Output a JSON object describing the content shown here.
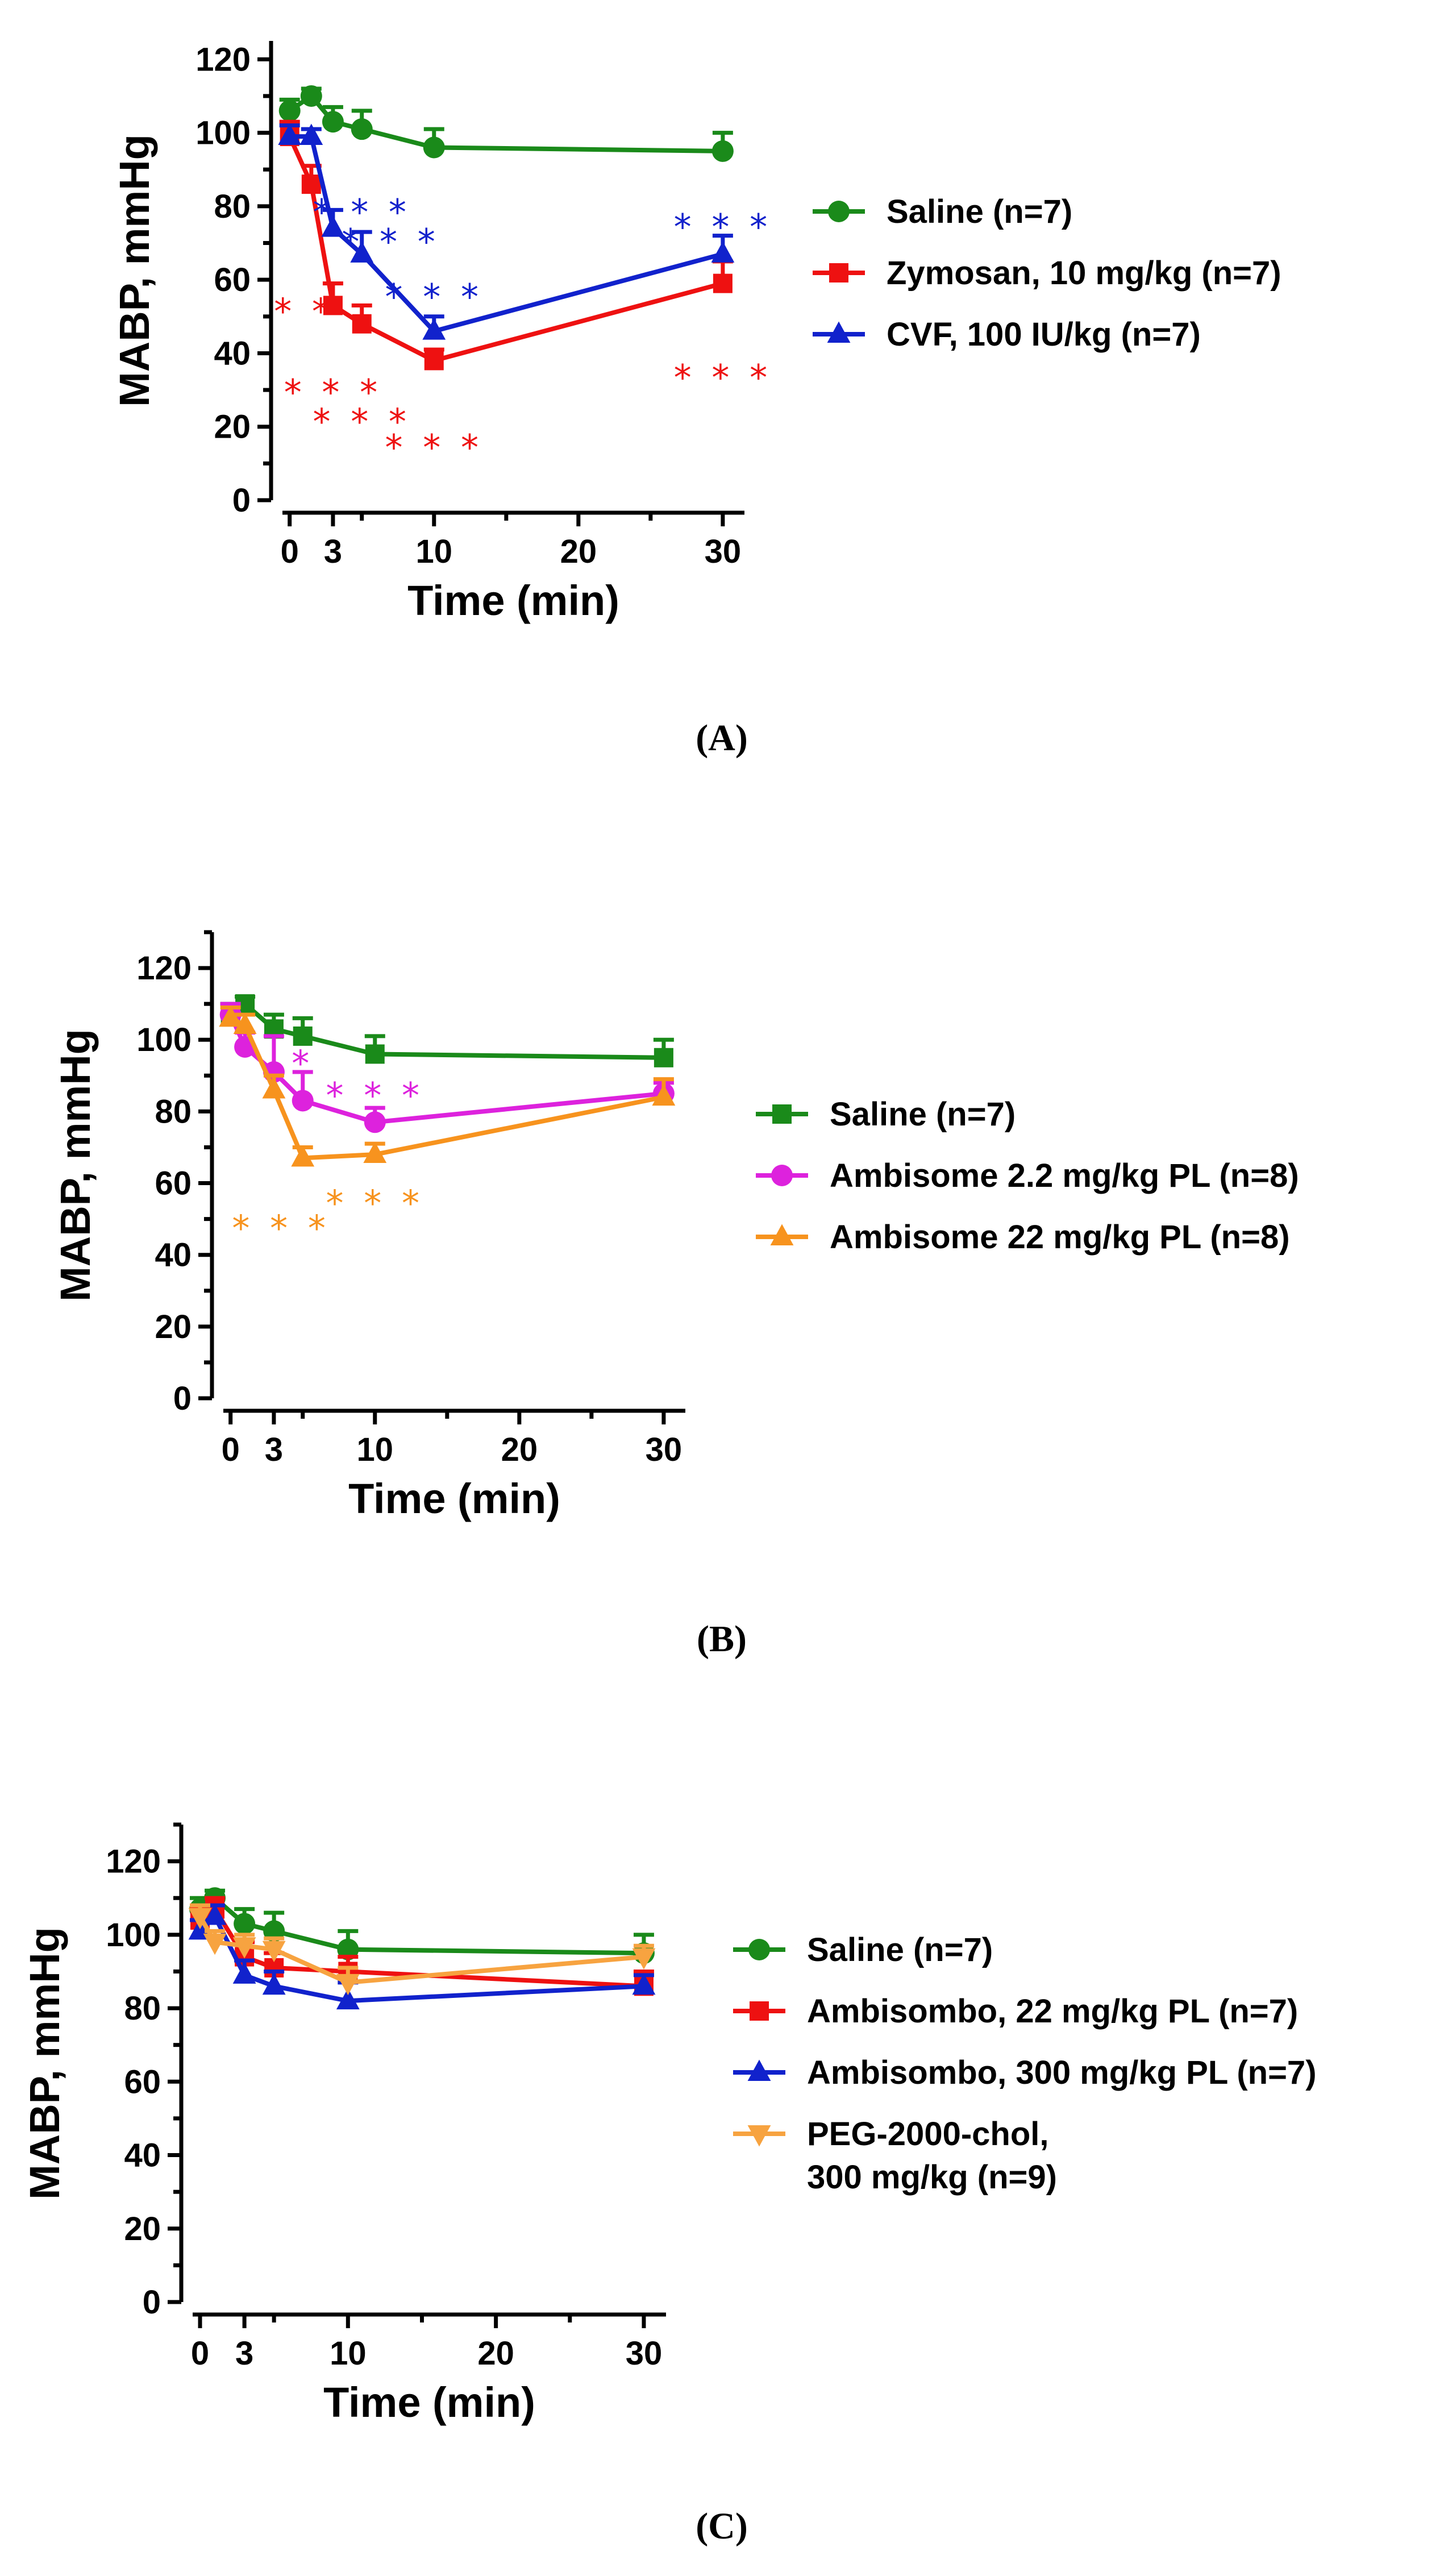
{
  "chart_data": [
    {
      "type": "line",
      "panel": "(A)",
      "xlabel": "Time (min)",
      "ylabel": "MABP, mmHg",
      "xticks": [
        0,
        3,
        10,
        20,
        30
      ],
      "yticks": [
        0,
        20,
        40,
        60,
        80,
        100,
        120
      ],
      "xlim": [
        -0.5,
        31.5
      ],
      "ylim": [
        0,
        125
      ],
      "legend_position": "right",
      "grid": false,
      "series": [
        {
          "name": "Saline (n=7)",
          "color": "#1a8a1a",
          "marker": "circle",
          "x": [
            0,
            1.5,
            3,
            5,
            10,
            30
          ],
          "y": [
            106,
            110,
            103,
            101,
            96,
            95
          ],
          "err": [
            3,
            2,
            4,
            5,
            5,
            5
          ]
        },
        {
          "name": "Zymosan, 10 mg/kg (n=7)",
          "color": "#ee1111",
          "marker": "square",
          "x": [
            0,
            1.5,
            3,
            5,
            10,
            30
          ],
          "y": [
            99,
            86,
            53,
            48,
            38,
            59
          ],
          "err": [
            4,
            5,
            6,
            5,
            3,
            6
          ]
        },
        {
          "name": "CVF, 100 IU/kg (n=7)",
          "color": "#1122cc",
          "marker": "triangle",
          "x": [
            0,
            1.5,
            3,
            5,
            10,
            30
          ],
          "y": [
            99,
            99,
            74,
            67,
            46,
            67
          ],
          "err": [
            3,
            2,
            5,
            6,
            4,
            5
          ]
        }
      ],
      "annotations": [
        {
          "text": "* * *",
          "color": "#1122cc",
          "x": 5,
          "y": 75
        },
        {
          "text": "* * *",
          "color": "#1122cc",
          "x": 7,
          "y": 67
        },
        {
          "text": "* * *",
          "color": "#1122cc",
          "x": 10,
          "y": 52
        },
        {
          "text": "* * *",
          "color": "#1122cc",
          "x": 30,
          "y": 71
        },
        {
          "text": "* *",
          "color": "#ee1111",
          "x": 1,
          "y": 48
        },
        {
          "text": "* * *",
          "color": "#ee1111",
          "x": 3,
          "y": 26
        },
        {
          "text": "* * *",
          "color": "#ee1111",
          "x": 5,
          "y": 18
        },
        {
          "text": "* * *",
          "color": "#ee1111",
          "x": 10,
          "y": 11
        },
        {
          "text": "* * *",
          "color": "#ee1111",
          "x": 30,
          "y": 30
        }
      ]
    },
    {
      "type": "line",
      "panel": "(B)",
      "xlabel": "Time (min)",
      "ylabel": "MABP, mmHg",
      "xticks": [
        0,
        3,
        10,
        20,
        30
      ],
      "yticks": [
        0,
        20,
        40,
        60,
        80,
        100,
        120
      ],
      "xlim": [
        -0.5,
        31.5
      ],
      "ylim": [
        0,
        130
      ],
      "legend_position": "right",
      "grid": false,
      "series": [
        {
          "name": "Saline (n=7)",
          "color": "#1a8a1a",
          "marker": "square",
          "x": [
            0,
            1,
            3,
            5,
            10,
            30
          ],
          "y": [
            107,
            110,
            103,
            101,
            96,
            95
          ],
          "err": [
            3,
            2,
            4,
            5,
            5,
            5
          ]
        },
        {
          "name": "Ambisome 2.2 mg/kg PL (n=8)",
          "color": "#dd22dd",
          "marker": "circle",
          "x": [
            0,
            1,
            3,
            5,
            10,
            30
          ],
          "y": [
            107,
            98,
            91,
            83,
            77,
            85
          ],
          "err": [
            3,
            4,
            10,
            8,
            4,
            3
          ]
        },
        {
          "name": "Ambisome 22 mg/kg PL (n=8)",
          "color": "#f7931e",
          "marker": "triangle",
          "x": [
            0,
            1,
            3,
            5,
            10,
            30
          ],
          "y": [
            106,
            104,
            86,
            67,
            68,
            84
          ],
          "err": [
            3,
            3,
            4,
            3,
            3,
            5
          ]
        }
      ],
      "annotations": [
        {
          "text": "*",
          "color": "#dd22dd",
          "x": 5,
          "y": 90
        },
        {
          "text": "* * *",
          "color": "#dd22dd",
          "x": 10,
          "y": 81
        },
        {
          "text": "* * *",
          "color": "#f7931e",
          "x": 3.5,
          "y": 44
        },
        {
          "text": "* * *",
          "color": "#f7931e",
          "x": 10,
          "y": 51
        }
      ]
    },
    {
      "type": "line",
      "panel": "(C)",
      "xlabel": "Time (min)",
      "ylabel": "MABP, mmHg",
      "xticks": [
        0,
        3,
        10,
        20,
        30
      ],
      "yticks": [
        0,
        20,
        40,
        60,
        80,
        100,
        120
      ],
      "xlim": [
        -0.5,
        31.5
      ],
      "ylim": [
        0,
        130
      ],
      "legend_position": "right",
      "grid": false,
      "series": [
        {
          "name": "Saline (n=7)",
          "color": "#1a8a1a",
          "marker": "circle",
          "x": [
            0,
            1,
            3,
            5,
            10,
            30
          ],
          "y": [
            107,
            110,
            103,
            101,
            96,
            95
          ],
          "err": [
            3,
            2,
            4,
            5,
            5,
            5
          ]
        },
        {
          "name": "Ambisombo, 22 mg/kg PL (n=7)",
          "color": "#ee1111",
          "marker": "square",
          "x": [
            0,
            1,
            3,
            5,
            10,
            30
          ],
          "y": [
            104,
            107,
            94,
            91,
            90,
            86
          ],
          "err": [
            3,
            3,
            4,
            4,
            4,
            4
          ]
        },
        {
          "name": "Ambisombo, 300 mg/kg PL (n=7)",
          "color": "#1122cc",
          "marker": "triangle",
          "x": [
            0,
            1,
            3,
            5,
            10,
            30
          ],
          "y": [
            101,
            105,
            89,
            86,
            82,
            86
          ],
          "err": [
            3,
            3,
            4,
            4,
            5,
            3
          ]
        },
        {
          "name": "PEG-2000-chol,\n300 mg/kg (n=9)",
          "name_lines": [
            "PEG-2000-chol,",
            "300 mg/kg (n=9)"
          ],
          "color": "#f7a340",
          "marker": "triangle-down",
          "x": [
            0,
            1,
            3,
            5,
            10,
            30
          ],
          "y": [
            105,
            98,
            97,
            96,
            87,
            94
          ],
          "err": [
            3,
            3,
            3,
            3,
            4,
            3
          ]
        }
      ],
      "annotations": []
    }
  ]
}
